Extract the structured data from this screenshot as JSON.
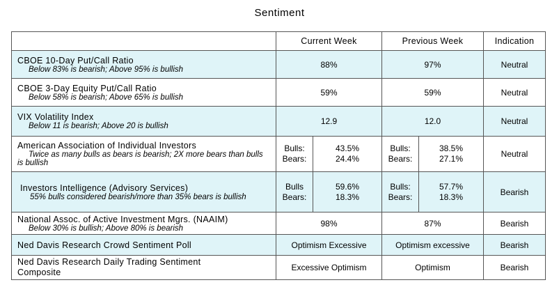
{
  "title": "Sentiment",
  "headers": [
    "",
    "Current Week",
    "Previous Week",
    "Indication"
  ],
  "rows": [
    {
      "name": "CBOE 10-Day Put/Call Ratio",
      "sub": "Below 83% is bearish; Above 95% is bullish",
      "current": "88%",
      "previous": "97%",
      "indication": "Neutral"
    },
    {
      "name": "CBOE 3-Day Equity Put/Call Ratio",
      "sub": "Below 58% is bearish; Above 65% is bullish",
      "current": "59%",
      "previous": "59%",
      "indication": "Neutral"
    },
    {
      "name": "VIX Volatility Index",
      "sub": "Below 11 is bearish; Above 20 is bullish",
      "current": "12.9",
      "previous": "12.0",
      "indication": "Neutral"
    },
    {
      "name": "American Association of Individual Investors",
      "sub": "Twice as many bulls as bears is bearish; 2X more bears than bulls is bullish",
      "current": {
        "l1": "Bulls:",
        "l2": "Bears:",
        "v1": "43.5%",
        "v2": "24.4%"
      },
      "previous": {
        "l1": "Bulls:",
        "l2": "Bears:",
        "v1": "38.5%",
        "v2": "27.1%"
      },
      "indication": "Neutral"
    },
    {
      "name": "Investors Intelligence (Advisory Services)",
      "sub": "55% bulls considered bearish/more than 35% bears is bullish",
      "current": {
        "l1": "Bulls",
        "l2": "Bears:",
        "v1": "59.6%",
        "v2": "18.3%"
      },
      "previous": {
        "l1": "Bulls:",
        "l2": "Bears:",
        "v1": "57.7%",
        "v2": "18.3%"
      },
      "indication": "Bearish"
    },
    {
      "name": "National Assoc. of Active Investment Mgrs. (NAAIM)",
      "sub": "Below 30% is bullish; Above 80% is bearish",
      "current": "98%",
      "previous": "87%",
      "indication": "Bearish"
    },
    {
      "name": "Ned Davis Research Crowd Sentiment Poll",
      "sub": "",
      "current": "Optimism Excessive",
      "previous": "Optimism excessive",
      "indication": "Bearish"
    },
    {
      "name": "Ned Davis Research Daily Trading Sentiment Composite",
      "sub": "",
      "current": "Excessive Optimism",
      "previous": "Optimism",
      "indication": "Bearish"
    }
  ],
  "colors": {
    "highlight": "#dff4f8",
    "border": "#555555"
  }
}
